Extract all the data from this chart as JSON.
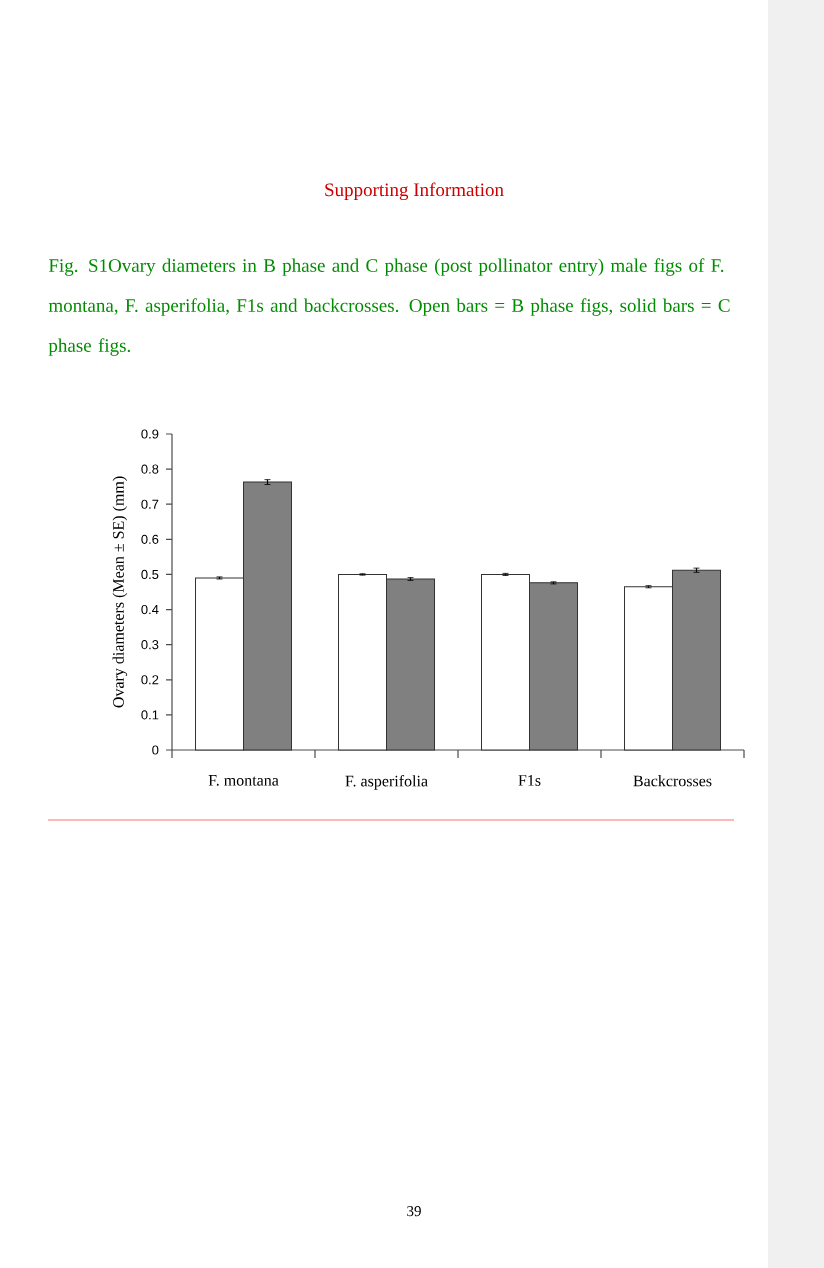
{
  "chart_data": {
    "type": "bar",
    "title": "Supporting Information",
    "subtitle": "Fig. S1Ovary diameters in B phase and C phase (post pollinator entry) male figs of F. montana, F. asperifolia, F1s and backcrosses. Open bars = B phase figs, solid bars = C phase figs.",
    "ylabel": "Ovary diameters (Mean ± SE) (mm)",
    "categories": [
      "F. montana",
      "F. asperifolia",
      "F1s",
      "Backcrosses"
    ],
    "series": [
      {
        "color": "#ffffff",
        "values": [
          0.49,
          0.5,
          0.5,
          0.465
        ],
        "errors": [
          0.003,
          0.002,
          0.003,
          0.003
        ]
      },
      {
        "color": "#808080",
        "values": [
          0.763,
          0.487,
          0.476,
          0.512
        ],
        "errors": [
          0.007,
          0.004,
          0.003,
          0.006
        ]
      }
    ],
    "ylim": [
      0,
      0.9
    ],
    "yticks": [
      0,
      0.1,
      0.2,
      0.3,
      0.4,
      0.5,
      0.6,
      0.7,
      0.8,
      0.9
    ],
    "annotations": [
      "39"
    ]
  }
}
